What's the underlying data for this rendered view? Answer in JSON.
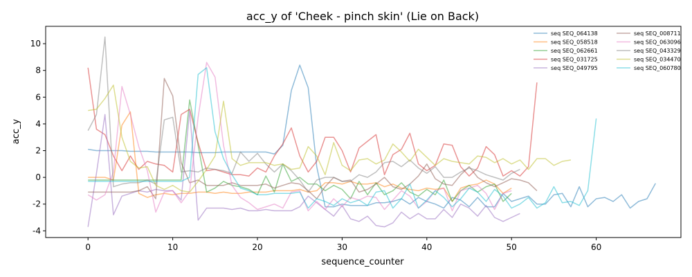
{
  "chart_data": {
    "type": "line",
    "title": "acc_y of 'Cheek - pinch skin' (Lie on Back)",
    "xlabel": "sequence_counter",
    "ylabel": "acc_y",
    "xlim": [
      -5,
      70
    ],
    "ylim": [
      -4.5,
      11.3
    ],
    "xticks": [
      0,
      10,
      20,
      30,
      40,
      50,
      60
    ],
    "yticks": [
      -4,
      -2,
      0,
      2,
      4,
      6,
      8,
      10
    ],
    "grid": false,
    "legend_position": "top-right",
    "series": [
      {
        "name": "seq SEQ_064138",
        "color": "#1f77b4",
        "values": [
          2.1,
          2.0,
          2.0,
          2.0,
          2.0,
          1.95,
          1.95,
          1.95,
          1.9,
          1.9,
          1.9,
          1.9,
          1.9,
          1.85,
          1.85,
          1.85,
          1.9,
          1.9,
          1.9,
          1.9,
          1.9,
          1.9,
          1.75,
          2.4,
          6.5,
          8.4,
          6.7,
          0.8,
          -2.2,
          -2.2,
          -2.0,
          -2.1,
          -2.1,
          -2.1,
          -1.9,
          -1.9,
          -1.8,
          -1.6,
          -2.0,
          -1.5,
          -1.8,
          -2.0,
          -2.3,
          -1.5,
          -1.7,
          -2.2,
          -1.5,
          -2.2,
          -2.2,
          -1.2,
          -1.8,
          -1.6,
          -1.4,
          -2.0,
          -2.0,
          -1.3,
          -1.2,
          -2.2,
          -0.7,
          -2.2,
          -1.6,
          -1.5,
          -1.8,
          -1.3,
          -2.3,
          -1.8,
          -1.6,
          -0.45
        ]
      },
      {
        "name": "seq SEQ_058518",
        "color": "#ff7f0e",
        "values": [
          0.0,
          0.0,
          0.0,
          -0.2,
          3.9,
          4.9,
          -1.2,
          -1.5,
          -1.3,
          -1.2,
          -1.3,
          -1.2,
          -1.2,
          -1.1,
          -1.1,
          -1.2,
          -1.1,
          -1.2,
          -1.2,
          -1.1,
          -1.1,
          -1.1,
          -1.0,
          -1.0,
          -1.0,
          -0.9,
          -1.1,
          -1.0,
          -0.4,
          -0.4,
          -0.5,
          -0.3,
          -0.5,
          -0.5,
          -0.4,
          -0.7,
          -0.5,
          -0.8,
          -0.9,
          -1.0,
          -0.8,
          -0.9,
          -0.8,
          -1.8,
          -0.8,
          -0.6,
          -0.5,
          -0.2,
          -0.5,
          -1.2,
          -0.8
        ]
      },
      {
        "name": "seq SEQ_062661",
        "color": "#2ca02c",
        "values": [
          -0.2,
          -0.2,
          -0.2,
          -0.2,
          -0.2,
          -0.2,
          -0.2,
          -0.2,
          -0.2,
          -0.2,
          -0.2,
          -0.2,
          5.8,
          2.4,
          -1.1,
          -0.8,
          -0.3,
          -0.6,
          -0.7,
          -0.9,
          -1.3,
          0.1,
          -1.1,
          1.0,
          -0.3,
          0.0,
          -0.5,
          -0.5,
          -1.0,
          -0.6,
          -0.9,
          -1.6,
          -0.3,
          -1.3,
          -0.4,
          -1.3,
          -1.0,
          -0.4,
          -1.1,
          -1.4,
          -0.9,
          -1.3,
          -0.2,
          -1.8,
          -1.0,
          -0.6,
          -1.1,
          -0.7,
          -0.5,
          -1.8,
          -1.2
        ]
      },
      {
        "name": "seq SEQ_031725",
        "color": "#d62728",
        "values": [
          8.2,
          3.6,
          3.2,
          1.6,
          0.5,
          1.6,
          0.6,
          1.2,
          1.0,
          0.9,
          0.4,
          4.7,
          5.1,
          2.6,
          0.5,
          0.6,
          0.4,
          0.2,
          0.2,
          0.1,
          0.7,
          0.4,
          1.6,
          2.5,
          3.7,
          1.6,
          0.4,
          1.2,
          3.0,
          3.0,
          2.0,
          0.4,
          2.2,
          2.7,
          3.2,
          0.2,
          1.7,
          2.1,
          3.3,
          1.0,
          0.5,
          0.9,
          2.5,
          2.4,
          0.8,
          0.1,
          0.7,
          2.3,
          1.7,
          0.1,
          0.5,
          0.1,
          0.8,
          7.1
        ]
      },
      {
        "name": "seq SEQ_049795",
        "color": "#9467bd",
        "values": [
          -3.7,
          0.3,
          4.7,
          -2.8,
          -1.4,
          -1.2,
          -1.0,
          -1.1,
          -0.9,
          -1.0,
          -1.0,
          -1.7,
          5.0,
          -3.2,
          -2.3,
          -2.3,
          -2.3,
          -2.4,
          -2.3,
          -2.5,
          -2.5,
          -2.4,
          -2.5,
          -2.5,
          -2.5,
          -2.2,
          -1.4,
          -1.9,
          -2.4,
          -2.9,
          -2.1,
          -3.1,
          -3.3,
          -2.9,
          -3.6,
          -3.7,
          -3.4,
          -2.6,
          -3.1,
          -2.7,
          -3.1,
          -3.1,
          -2.4,
          -3.0,
          -2.0,
          -2.3,
          -2.9,
          -2.1,
          -3.0,
          -3.3,
          -3.0,
          -2.7
        ]
      },
      {
        "name": "seq SEQ_008711",
        "color": "#8c564b",
        "values": [
          -1.1,
          -1.1,
          -1.1,
          -1.1,
          -1.1,
          -1.1,
          -1.0,
          -0.7,
          -1.6,
          7.4,
          6.1,
          1.1,
          -0.4,
          -0.2,
          -0.6,
          -0.6,
          -0.6,
          -0.4,
          -0.6,
          -0.6,
          -0.6,
          -0.5,
          -0.8,
          -0.6,
          -0.4,
          -0.5,
          -1.0,
          -1.6,
          -0.7,
          0.0,
          -0.3,
          -0.2,
          -1.1,
          -0.9,
          -0.5,
          0.0,
          -0.7,
          -0.9,
          -0.5,
          0.1,
          1.0,
          -0.1,
          -0.5,
          -0.6,
          0.2,
          0.8,
          0.0,
          -0.4,
          -0.7,
          -0.4,
          -0.1,
          -0.2,
          -0.4,
          -1.0
        ]
      },
      {
        "name": "seq SEQ_063096",
        "color": "#e377c2",
        "values": [
          -1.3,
          -1.7,
          -1.3,
          0.4,
          6.8,
          4.7,
          2.3,
          0.5,
          -2.6,
          -1.1,
          -1.0,
          -1.9,
          -1.0,
          4.5,
          8.6,
          7.5,
          2.4,
          -0.6,
          -1.5,
          -1.9,
          -2.4,
          -2.2,
          -2.0,
          -2.3,
          -1.1,
          -1.0,
          -2.5,
          -1.8,
          -2.4,
          -1.6,
          -2.2,
          -1.5,
          -1.7,
          -1.4,
          -1.5,
          -2.4,
          -1.7,
          -1.0,
          -1.4,
          -2.3,
          -1.8,
          -1.0,
          -0.8,
          -2.5,
          -1.0,
          -0.8,
          -0.6,
          -1.2,
          -2.4,
          -1.2,
          -1.0
        ]
      },
      {
        "name": "seq SEQ_043329",
        "color": "#7f7f7f",
        "values": [
          3.5,
          4.7,
          10.5,
          -0.7,
          -0.5,
          -0.4,
          -0.4,
          -0.2,
          -0.5,
          4.3,
          4.5,
          0.4,
          0.5,
          0.4,
          0.7,
          0.6,
          0.5,
          0.3,
          1.9,
          1.2,
          1.8,
          1.0,
          0.4,
          1.0,
          0.5,
          -0.2,
          -1.1,
          -0.2,
          0.0,
          0.0,
          -0.3,
          -0.3,
          0.2,
          0.0,
          0.4,
          1.1,
          1.2,
          0.8,
          1.3,
          0.7,
          0.3,
          0.8,
          0.0,
          0.0,
          0.4,
          0.7,
          0.5,
          0.2,
          0.0,
          -0.2,
          0.3,
          0.6
        ]
      },
      {
        "name": "seq SEQ_034470",
        "color": "#bcbd22",
        "values": [
          5.0,
          5.1,
          5.9,
          6.9,
          3.0,
          1.2,
          0.7,
          0.8,
          -0.6,
          -0.9,
          -0.6,
          -1.0,
          -1.1,
          -0.3,
          0.6,
          1.6,
          5.7,
          1.4,
          0.9,
          1.1,
          1.1,
          1.1,
          0.9,
          1.0,
          0.6,
          0.7,
          2.3,
          1.6,
          0.2,
          2.6,
          0.9,
          0.5,
          1.3,
          1.4,
          1.0,
          1.3,
          2.5,
          1.9,
          1.2,
          2.1,
          1.5,
          0.9,
          1.4,
          1.2,
          1.1,
          1.0,
          1.6,
          1.5,
          1.1,
          1.4,
          1.0,
          1.3,
          0.6,
          1.4,
          1.4,
          0.9,
          1.2,
          1.3
        ]
      },
      {
        "name": "seq SEQ_060780",
        "color": "#17becf",
        "values": [
          -0.3,
          -0.3,
          -0.3,
          -0.3,
          -0.3,
          -0.3,
          -0.3,
          -0.3,
          -0.3,
          -0.3,
          -0.3,
          -0.3,
          0.0,
          7.7,
          8.2,
          3.4,
          1.4,
          0.2,
          -0.8,
          -1.0,
          -1.3,
          -1.3,
          -1.2,
          -1.2,
          -1.2,
          -1.1,
          -2.3,
          -1.6,
          -1.8,
          -2.1,
          -1.6,
          -1.9,
          -1.7,
          -2.1,
          -1.1,
          -1.0,
          -2.3,
          -1.6,
          -0.5,
          -2.3,
          -1.7,
          -1.0,
          -1.5,
          -2.2,
          -1.6,
          -0.8,
          -1.1,
          -1.8,
          -0.9,
          -1.4,
          -2.3,
          -2.0,
          -1.5,
          -2.3,
          -1.9,
          -0.7,
          -1.9,
          -1.8,
          -2.1,
          -1.0,
          4.4
        ]
      }
    ]
  }
}
